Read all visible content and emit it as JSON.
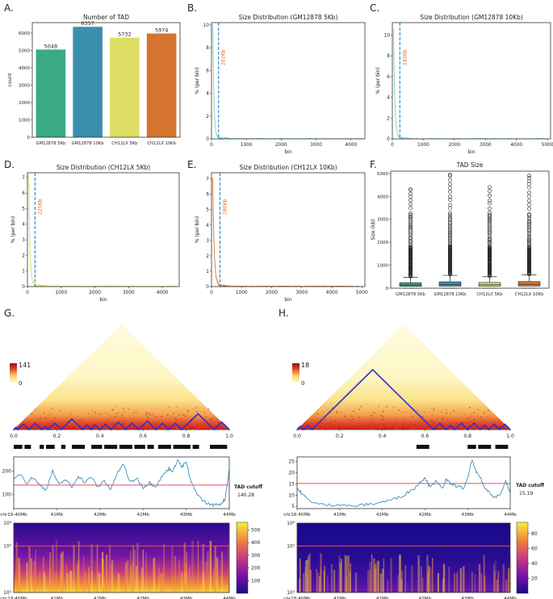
{
  "panels": {
    "A": {
      "letter": "A."
    },
    "B": {
      "letter": "B."
    },
    "C": {
      "letter": "C."
    },
    "D": {
      "letter": "D."
    },
    "E": {
      "letter": "E."
    },
    "F": {
      "letter": "F."
    },
    "G": {
      "letter": "G."
    },
    "H": {
      "letter": "H."
    }
  },
  "colors": {
    "teal": "#3aaa86",
    "blue": "#3a8fae",
    "yellow": "#dede64",
    "orange": "#d4742f",
    "dash": "#2a86c8",
    "vlabel": "#e06a1e",
    "hist_line": "#7fcfc2",
    "coverage": "#3a92c0",
    "cutoff": "#e8505b",
    "tad_outline": "#2f2fd6"
  },
  "chart_data": [
    {
      "id": "A",
      "type": "bar",
      "title": "Number of TAD",
      "ylabel": "count",
      "categories": [
        "GM12878 5Kb",
        "GM12878 10Kb",
        "CH12LX 5Kb",
        "CH12LX 10Kb"
      ],
      "values": [
        5048,
        6357,
        5732,
        5974
      ],
      "value_labels": [
        "5048",
        "6357",
        "5732",
        "5974"
      ],
      "ylim": [
        0,
        6600
      ],
      "yticks": [
        0,
        1000,
        2000,
        3000,
        4000,
        5000,
        6000
      ],
      "ytick_labels": [
        "0",
        "1000",
        "2000",
        "3000",
        "4000",
        "5000",
        "6000"
      ]
    },
    {
      "id": "B",
      "type": "line",
      "title": "Size Distribution (GM12878 5Kb)",
      "xlabel": "bin",
      "ylabel": "% (per bin)",
      "xlim": [
        0,
        4400
      ],
      "ylim": [
        0,
        10.2
      ],
      "xticks": [
        0,
        1000,
        2000,
        3000,
        4000
      ],
      "xtick_labels": [
        "0",
        "1000",
        "2000",
        "3000",
        "4000"
      ],
      "yticks": [
        0,
        2,
        4,
        6,
        8,
        10
      ],
      "ytick_labels": [
        "0",
        "2",
        "4",
        "6",
        "8",
        "10"
      ],
      "vline": 202,
      "vline_label": "202Kb",
      "xmax_data": 4300,
      "peak": 10,
      "decay": 35
    },
    {
      "id": "C",
      "type": "line",
      "title": "Size Distribution (GM12878 10Kb)",
      "xlabel": "bin",
      "ylabel": "% (per bin)",
      "xlim": [
        0,
        5100
      ],
      "ylim": [
        0,
        11.2
      ],
      "xticks": [
        0,
        1000,
        2000,
        3000,
        4000,
        5000
      ],
      "xtick_labels": [
        "0",
        "1000",
        "2000",
        "3000",
        "4000",
        "5000"
      ],
      "yticks": [
        0,
        2,
        4,
        6,
        8,
        10
      ],
      "ytick_labels": [
        "0",
        "2",
        "4",
        "6",
        "8",
        "10"
      ],
      "vline": 242,
      "vline_label": "242Kb",
      "xmax_data": 4900,
      "peak": 10.5,
      "decay": 45
    },
    {
      "id": "D",
      "type": "line",
      "title": "Size Distribution (CH12LX 5Kb)",
      "xlabel": "bin",
      "ylabel": "% (per bin)",
      "xlim": [
        0,
        4500
      ],
      "ylim": [
        0,
        7.3
      ],
      "xticks": [
        0,
        1000,
        2000,
        3000,
        4000
      ],
      "xtick_labels": [
        "0",
        "1000",
        "2000",
        "3000",
        "4000"
      ],
      "yticks": [
        0,
        1,
        2,
        3,
        4,
        5,
        6,
        7
      ],
      "ytick_labels": [
        "0",
        "1",
        "2",
        "3",
        "4",
        "5",
        "6",
        "7"
      ],
      "vline": 225,
      "vline_label": "225Kb",
      "xmax_data": 4400,
      "peak": 7,
      "decay": 40
    },
    {
      "id": "E",
      "type": "line",
      "title": "Size Distribution (CH12LX 10Kb)",
      "xlabel": "bin",
      "ylabel": "% (per bin)",
      "xlim": [
        0,
        5100
      ],
      "ylim": [
        0,
        7.4
      ],
      "xticks": [
        0,
        1000,
        2000,
        3000,
        4000,
        5000
      ],
      "xtick_labels": [
        "0",
        "1000",
        "2000",
        "3000",
        "4000",
        "5000"
      ],
      "yticks": [
        0,
        1,
        2,
        3,
        4,
        5,
        6,
        7
      ],
      "ytick_labels": [
        "0",
        "1",
        "2",
        "3",
        "4",
        "5",
        "6",
        "7"
      ],
      "vline": 280,
      "vline_label": "280Kb",
      "xmax_data": 4900,
      "peak": 7,
      "decay": 55
    },
    {
      "id": "F",
      "type": "box",
      "title": "TAD Size",
      "ylabel": "Size (kb)",
      "categories": [
        "GM12878 5Kb",
        "GM12878 10Kb",
        "CH12LX 5Kb",
        "CH12LX 10Kb"
      ],
      "q1": [
        80,
        90,
        85,
        95
      ],
      "median": [
        140,
        160,
        150,
        170
      ],
      "q3": [
        240,
        280,
        250,
        290
      ],
      "whisker_high": [
        480,
        560,
        500,
        580
      ],
      "outlier_max": [
        4300,
        4950,
        4400,
        4900
      ],
      "ylim": [
        0,
        5100
      ],
      "yticks": [
        0,
        1000,
        2000,
        3000,
        4000,
        5000
      ],
      "ytick_labels": [
        "0",
        "1000",
        "2000",
        "3000",
        "4000",
        "5000"
      ]
    },
    {
      "id": "G",
      "type": "heatmap",
      "scale_max_label": "141",
      "scale_min_label": "0",
      "xticks": [
        0.0,
        0.2,
        0.4,
        0.6,
        0.8,
        1.0
      ],
      "xtick_labels": [
        "0.0",
        "0.2",
        "0.4",
        "0.6",
        "0.8",
        "1.0"
      ],
      "tad_peaks": [
        [
          0.0,
          0.02
        ],
        [
          0.02,
          0.07
        ],
        [
          0.07,
          0.13
        ],
        [
          0.13,
          0.16
        ],
        [
          0.16,
          0.22
        ],
        [
          0.22,
          0.32
        ],
        [
          0.32,
          0.36
        ],
        [
          0.36,
          0.4
        ],
        [
          0.4,
          0.45
        ],
        [
          0.45,
          0.52
        ],
        [
          0.52,
          0.58
        ],
        [
          0.58,
          0.66
        ],
        [
          0.66,
          0.72
        ],
        [
          0.72,
          0.78
        ],
        [
          0.78,
          0.93
        ],
        [
          0.93,
          1.0
        ]
      ],
      "boundaries": [
        [
          0.0,
          0.04
        ],
        [
          0.05,
          0.08
        ],
        [
          0.12,
          0.14
        ],
        [
          0.15,
          0.19
        ],
        [
          0.22,
          0.24
        ],
        [
          0.27,
          0.33
        ],
        [
          0.36,
          0.41
        ],
        [
          0.42,
          0.48
        ],
        [
          0.49,
          0.55
        ],
        [
          0.56,
          0.61
        ],
        [
          0.62,
          0.65
        ],
        [
          0.67,
          0.73
        ],
        [
          0.74,
          0.82
        ],
        [
          0.83,
          0.86
        ],
        [
          0.91,
          0.99
        ]
      ]
    },
    {
      "id": "G-coverage",
      "type": "line",
      "yticks": [
        100,
        200
      ],
      "ytick_labels": [
        "100",
        "200"
      ],
      "ylim": [
        40,
        260
      ],
      "xtick_labels": [
        "chr19:40Mb",
        "41Mb",
        "42Mb",
        "42Mb",
        "43Mb",
        "44Mb"
      ],
      "cutoff": 140.28,
      "cutoff_title": "TAD cutoff",
      "cutoff_value": "140.28",
      "profile": [
        [
          0.0,
          160
        ],
        [
          0.03,
          190
        ],
        [
          0.06,
          150
        ],
        [
          0.09,
          175
        ],
        [
          0.12,
          140
        ],
        [
          0.15,
          120
        ],
        [
          0.18,
          200
        ],
        [
          0.21,
          140
        ],
        [
          0.24,
          165
        ],
        [
          0.27,
          130
        ],
        [
          0.3,
          180
        ],
        [
          0.33,
          150
        ],
        [
          0.36,
          175
        ],
        [
          0.39,
          130
        ],
        [
          0.42,
          160
        ],
        [
          0.45,
          120
        ],
        [
          0.48,
          190
        ],
        [
          0.51,
          230
        ],
        [
          0.54,
          150
        ],
        [
          0.57,
          170
        ],
        [
          0.6,
          130
        ],
        [
          0.63,
          150
        ],
        [
          0.66,
          135
        ],
        [
          0.69,
          180
        ],
        [
          0.72,
          210
        ],
        [
          0.74,
          200
        ],
        [
          0.76,
          250
        ],
        [
          0.78,
          215
        ],
        [
          0.8,
          240
        ],
        [
          0.82,
          160
        ],
        [
          0.84,
          120
        ],
        [
          0.87,
          80
        ],
        [
          0.9,
          60
        ],
        [
          0.93,
          55
        ],
        [
          0.96,
          60
        ],
        [
          0.98,
          80
        ],
        [
          1.0,
          205
        ]
      ]
    },
    {
      "id": "G-spectrum",
      "type": "heatmap",
      "ytick_labels": [
        "10⁸",
        "10⁵",
        "10⁰"
      ],
      "xtick_labels": [
        "chr19:40Mb",
        "41Mb",
        "42Mb",
        "42Mb",
        "43Mb",
        "44Mb"
      ],
      "colorbar_ticks": [
        100,
        200,
        300,
        400,
        500
      ],
      "colorbar_labels": [
        "100",
        "200",
        "300",
        "400",
        "500"
      ],
      "colorbar_max": 560
    },
    {
      "id": "H",
      "type": "heatmap",
      "scale_max_label": "18",
      "scale_min_label": "0",
      "xticks": [
        0.0,
        0.2,
        0.4,
        0.6,
        0.8,
        1.0
      ],
      "xtick_labels": [
        "0.0",
        "0.2",
        "0.4",
        "0.6",
        "0.8",
        "1.0"
      ],
      "tad_peaks": [
        [
          0.0,
          0.03
        ],
        [
          0.03,
          0.07
        ],
        [
          0.07,
          0.64
        ],
        [
          0.64,
          0.7
        ],
        [
          0.7,
          0.74
        ],
        [
          0.74,
          0.8
        ],
        [
          0.8,
          0.86
        ],
        [
          0.86,
          0.9
        ],
        [
          0.9,
          0.95
        ],
        [
          0.95,
          1.0
        ]
      ],
      "boundaries": [
        [
          0.56,
          0.62
        ],
        [
          0.8,
          0.84
        ],
        [
          0.85,
          0.91
        ],
        [
          0.93,
          0.99
        ]
      ]
    },
    {
      "id": "H-coverage",
      "type": "line",
      "yticks": [
        5,
        10,
        15,
        20,
        25
      ],
      "ytick_labels": [
        "5",
        "10",
        "15",
        "20",
        "25"
      ],
      "ylim": [
        4,
        27
      ],
      "xtick_labels": [
        "chr18:40Mb",
        "41Mb",
        "42Mb",
        "42Mb",
        "43Mb",
        "44Mb"
      ],
      "cutoff": 15.19,
      "cutoff_title": "TAD cutoff",
      "cutoff_value": "15.19",
      "profile": [
        [
          0.0,
          13
        ],
        [
          0.02,
          11
        ],
        [
          0.05,
          8
        ],
        [
          0.1,
          6
        ],
        [
          0.15,
          5.5
        ],
        [
          0.2,
          6
        ],
        [
          0.25,
          5
        ],
        [
          0.3,
          5.5
        ],
        [
          0.35,
          6
        ],
        [
          0.4,
          7
        ],
        [
          0.45,
          8
        ],
        [
          0.5,
          10
        ],
        [
          0.55,
          13
        ],
        [
          0.58,
          16
        ],
        [
          0.6,
          18
        ],
        [
          0.62,
          14
        ],
        [
          0.65,
          16
        ],
        [
          0.68,
          13
        ],
        [
          0.7,
          17
        ],
        [
          0.72,
          15
        ],
        [
          0.75,
          14
        ],
        [
          0.78,
          13
        ],
        [
          0.8,
          17
        ],
        [
          0.82,
          26
        ],
        [
          0.84,
          20
        ],
        [
          0.86,
          18
        ],
        [
          0.88,
          13
        ],
        [
          0.9,
          12
        ],
        [
          0.92,
          9
        ],
        [
          0.95,
          10
        ],
        [
          0.98,
          16
        ],
        [
          1.0,
          11
        ]
      ]
    },
    {
      "id": "H-spectrum",
      "type": "heatmap",
      "ytick_labels": [
        "10⁸",
        "10⁵",
        "10⁰"
      ],
      "xtick_labels": [
        "chr18:40Mb",
        "41Mb",
        "42Mb",
        "42Mb",
        "43Mb",
        "44Mb"
      ],
      "colorbar_ticks": [
        20,
        40,
        60,
        80
      ],
      "colorbar_labels": [
        "20",
        "40",
        "60",
        "80"
      ],
      "colorbar_max": 95
    }
  ]
}
